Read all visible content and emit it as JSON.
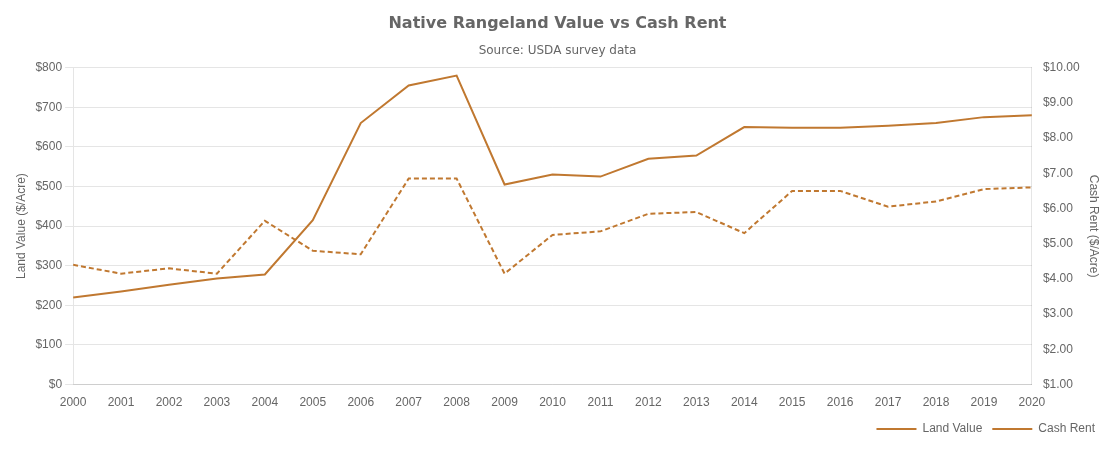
{
  "chart_data": {
    "type": "line",
    "title": "Native Rangeland Value vs Cash Rent",
    "subtitle": "Source: USDA survey data",
    "x": [
      2000,
      2001,
      2002,
      2003,
      2004,
      2005,
      2006,
      2007,
      2008,
      2009,
      2010,
      2011,
      2012,
      2013,
      2014,
      2015,
      2016,
      2017,
      2018,
      2019,
      2020
    ],
    "xlim": [
      2000,
      2020
    ],
    "xticks": [
      2000,
      2001,
      2002,
      2003,
      2004,
      2005,
      2006,
      2007,
      2008,
      2009,
      2010,
      2011,
      2012,
      2013,
      2014,
      2015,
      2016,
      2017,
      2018,
      2019,
      2020
    ],
    "series": [
      {
        "name": "Land Value",
        "color": "#C07830",
        "line_style": "solid",
        "values": [
          220,
          235,
          252,
          268,
          278,
          415,
          660,
          755,
          780,
          505,
          530,
          525,
          570,
          578,
          650,
          648,
          648,
          653,
          660,
          675,
          680
        ]
      },
      {
        "name": "Cash Rent",
        "color": "#C07830",
        "line_style": "dashed",
        "axis": "y2",
        "values": [
          4.4,
          4.15,
          4.3,
          4.15,
          5.65,
          4.8,
          4.7,
          6.85,
          6.85,
          4.15,
          5.25,
          5.35,
          5.85,
          5.9,
          5.3,
          6.5,
          6.5,
          6.05,
          6.2,
          6.55,
          6.6
        ]
      }
    ],
    "ylabel": "Land Value ($/Acre)",
    "y2label": "Cash Rent ($/Acre)",
    "ylim": [
      0,
      800
    ],
    "yticks": [
      {
        "value": 0,
        "label": "$0"
      },
      {
        "value": 100,
        "label": "$100"
      },
      {
        "value": 200,
        "label": "$200"
      },
      {
        "value": 300,
        "label": "$300"
      },
      {
        "value": 400,
        "label": "$400"
      },
      {
        "value": 500,
        "label": "$500"
      },
      {
        "value": 600,
        "label": "$600"
      },
      {
        "value": 700,
        "label": "$700"
      },
      {
        "value": 800,
        "label": "$800"
      }
    ],
    "y2lim": [
      1.0,
      10.0
    ],
    "y2ticks": [
      {
        "value": 1.0,
        "label": "$1.00"
      },
      {
        "value": 2.0,
        "label": "$2.00"
      },
      {
        "value": 3.0,
        "label": "$3.00"
      },
      {
        "value": 4.0,
        "label": "$4.00"
      },
      {
        "value": 5.0,
        "label": "$5.00"
      },
      {
        "value": 6.0,
        "label": "$6.00"
      },
      {
        "value": 7.0,
        "label": "$7.00"
      },
      {
        "value": 8.0,
        "label": "$8.00"
      },
      {
        "value": 9.0,
        "label": "$9.00"
      },
      {
        "value": 10.0,
        "label": "$10.00"
      }
    ],
    "grid": true,
    "legend": "lower right"
  }
}
